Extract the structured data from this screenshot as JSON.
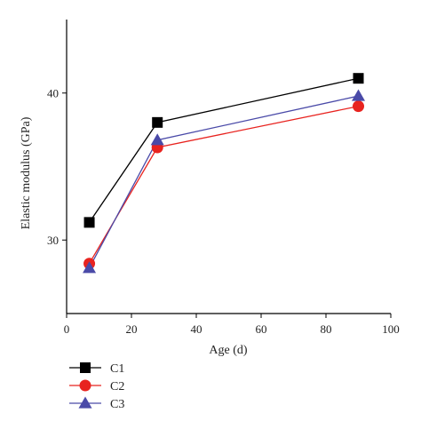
{
  "chart_data": {
    "type": "line",
    "xlabel": "Age (d)",
    "ylabel": "Elastic modulus (GPa)",
    "xlim": [
      0,
      100
    ],
    "ylim": [
      25,
      45
    ],
    "xticks": [
      0,
      20,
      40,
      60,
      80,
      100
    ],
    "yticks": [
      30,
      40
    ],
    "grid": false,
    "legend_position": "bottom-left",
    "x": [
      7,
      28,
      90
    ],
    "series": [
      {
        "name": "C1",
        "values": [
          31.2,
          38.0,
          41.0
        ],
        "color": "#000000",
        "marker": "square"
      },
      {
        "name": "C2",
        "values": [
          28.4,
          36.3,
          39.1
        ],
        "color": "#e8231f",
        "marker": "circle"
      },
      {
        "name": "C3",
        "values": [
          28.1,
          36.8,
          39.8
        ],
        "color": "#4a4aa8",
        "marker": "triangle"
      }
    ]
  }
}
